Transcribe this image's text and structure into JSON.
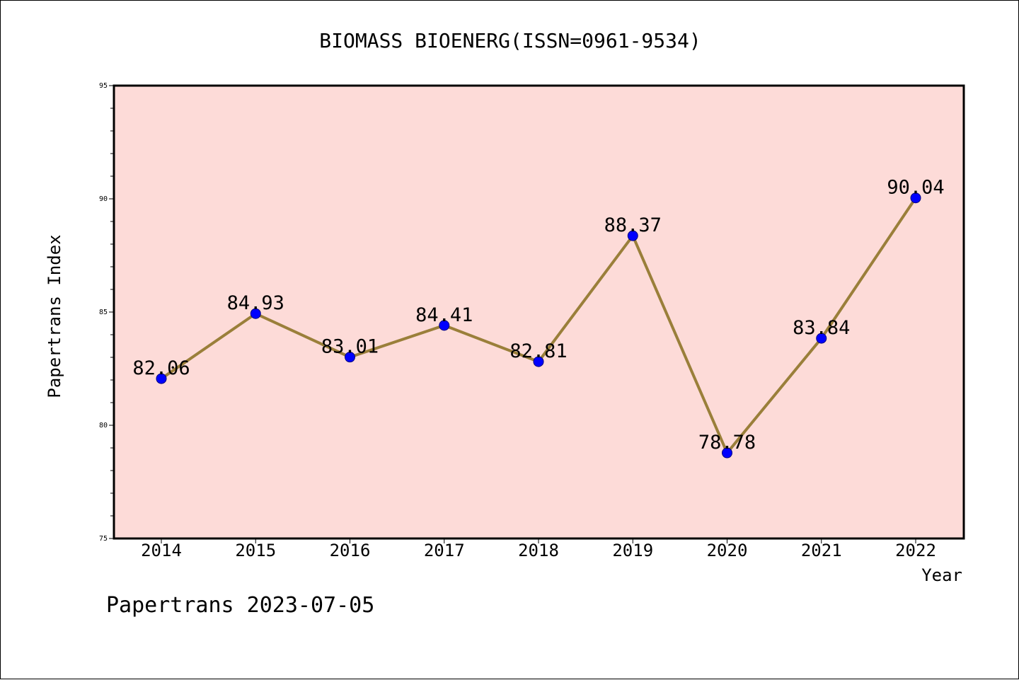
{
  "footer": {
    "credit": "Papertrans 2023-07-05"
  },
  "chart_data": {
    "type": "line",
    "title": "BIOMASS BIOENERG(ISSN=0961-9534)",
    "xlabel": "Year",
    "ylabel": "Papertrans Index",
    "categories": [
      "2014",
      "2015",
      "2016",
      "2017",
      "2018",
      "2019",
      "2020",
      "2021",
      "2022"
    ],
    "series": [
      {
        "values": [
          82.06,
          84.93,
          83.01,
          84.41,
          82.81,
          88.37,
          78.78,
          83.84,
          90.04
        ],
        "labels": [
          "82.06",
          "84.93",
          "83.01",
          "84.41",
          "82.81",
          "88.37",
          "78.78",
          "83.84",
          "90.04"
        ]
      }
    ],
    "ylim": [
      75,
      95
    ],
    "yticks": [
      "75",
      "80",
      "85",
      "90",
      "95"
    ],
    "grid": false,
    "legend": "none",
    "colors": {
      "plot_background": "#fddbd8",
      "line": "#9a7f3a",
      "marker_fill": "#0000ff",
      "marker_edge": "#000080",
      "axes": "#000000"
    }
  }
}
